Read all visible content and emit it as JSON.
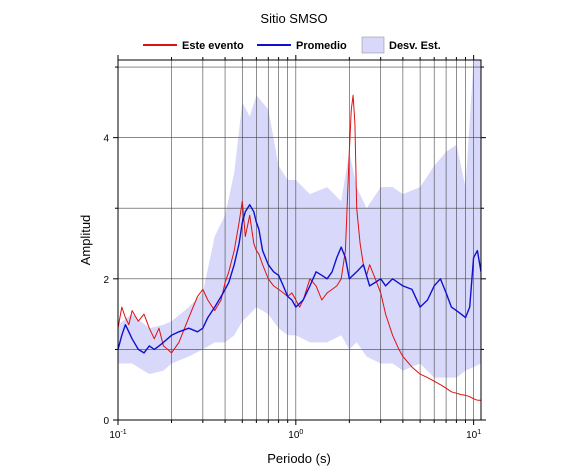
{
  "chart_data": {
    "type": "line",
    "title": "Sitio SMSO",
    "xlabel": "Periodo (s)",
    "ylabel": "Amplitud",
    "x_scale": "log",
    "xlim": [
      0.1,
      11
    ],
    "ylim": [
      0,
      5.1
    ],
    "grid": true,
    "legend_position": "top",
    "x_tick_labels": [
      {
        "base": "10",
        "exp": "-1",
        "value": 0.1
      },
      {
        "base": "10",
        "exp": "0",
        "value": 1
      },
      {
        "base": "10",
        "exp": "1",
        "value": 10
      }
    ],
    "y_ticks": [
      0,
      2,
      4
    ],
    "y_tick_labels": [
      "0",
      "2",
      "4"
    ],
    "legend": [
      {
        "label": "Este evento",
        "kind": "line",
        "color": "#e01010"
      },
      {
        "label": "Promedio",
        "kind": "line",
        "color": "#1010d0"
      },
      {
        "label": "Desv. Est.",
        "kind": "band",
        "color": "#d8d8fa"
      }
    ],
    "band": {
      "name": "Desv. Est.",
      "color": "#d8d8fa",
      "x": [
        0.1,
        0.12,
        0.15,
        0.18,
        0.2,
        0.25,
        0.3,
        0.35,
        0.4,
        0.45,
        0.5,
        0.55,
        0.6,
        0.7,
        0.8,
        0.9,
        1.0,
        1.2,
        1.5,
        1.8,
        2.0,
        2.2,
        2.5,
        3.0,
        3.5,
        4.0,
        5.0,
        6.0,
        7.0,
        8.0,
        9.0,
        10.0,
        11.0
      ],
      "upper": [
        1.35,
        1.5,
        1.3,
        1.35,
        1.4,
        1.6,
        1.8,
        2.6,
        2.9,
        3.5,
        4.5,
        4.3,
        4.6,
        4.4,
        3.6,
        3.4,
        3.4,
        3.2,
        3.3,
        3.1,
        3.8,
        3.3,
        3.0,
        3.3,
        3.3,
        3.2,
        3.3,
        3.6,
        3.8,
        3.9,
        3.3,
        5.1,
        5.1
      ],
      "lower": [
        0.8,
        0.8,
        0.65,
        0.7,
        0.8,
        0.9,
        1.0,
        1.1,
        1.1,
        1.2,
        1.4,
        1.5,
        1.6,
        1.5,
        1.3,
        1.2,
        1.2,
        1.1,
        1.1,
        1.2,
        1.0,
        1.1,
        0.9,
        0.8,
        0.8,
        0.7,
        0.8,
        0.6,
        0.6,
        0.6,
        0.7,
        0.75,
        0.8
      ]
    },
    "series": [
      {
        "name": "Este evento",
        "color": "#e01010",
        "x": [
          0.1,
          0.105,
          0.11,
          0.115,
          0.12,
          0.13,
          0.14,
          0.15,
          0.16,
          0.17,
          0.18,
          0.19,
          0.2,
          0.22,
          0.25,
          0.28,
          0.3,
          0.32,
          0.35,
          0.38,
          0.4,
          0.42,
          0.45,
          0.48,
          0.5,
          0.52,
          0.55,
          0.58,
          0.6,
          0.62,
          0.65,
          0.7,
          0.75,
          0.8,
          0.85,
          0.9,
          0.95,
          1.0,
          1.05,
          1.1,
          1.2,
          1.3,
          1.4,
          1.5,
          1.6,
          1.7,
          1.8,
          1.9,
          2.0,
          2.05,
          2.1,
          2.15,
          2.2,
          2.3,
          2.4,
          2.5,
          2.6,
          2.7,
          2.8,
          3.0,
          3.2,
          3.5,
          3.8,
          4.0,
          4.5,
          5.0,
          5.5,
          6.0,
          6.5,
          7.0,
          7.5,
          8.0,
          8.5,
          9.0,
          9.5,
          10.0,
          10.5,
          11.0
        ],
        "y": [
          1.3,
          1.6,
          1.45,
          1.35,
          1.55,
          1.4,
          1.5,
          1.3,
          1.15,
          1.3,
          1.05,
          1.0,
          0.95,
          1.1,
          1.45,
          1.75,
          1.85,
          1.7,
          1.55,
          1.7,
          1.95,
          2.1,
          2.4,
          2.8,
          3.1,
          2.6,
          2.9,
          2.5,
          2.4,
          2.35,
          2.2,
          2.0,
          1.9,
          1.85,
          1.8,
          1.75,
          1.8,
          1.7,
          1.6,
          1.7,
          2.0,
          1.9,
          1.7,
          1.8,
          1.85,
          1.9,
          2.0,
          2.4,
          3.8,
          4.4,
          4.6,
          4.2,
          3.0,
          2.5,
          2.2,
          2.05,
          2.2,
          2.1,
          2.0,
          1.8,
          1.5,
          1.2,
          1.0,
          0.9,
          0.75,
          0.65,
          0.6,
          0.55,
          0.5,
          0.45,
          0.4,
          0.38,
          0.36,
          0.35,
          0.33,
          0.3,
          0.28,
          0.28
        ]
      },
      {
        "name": "Promedio",
        "color": "#1010d0",
        "x": [
          0.1,
          0.105,
          0.11,
          0.115,
          0.12,
          0.13,
          0.14,
          0.15,
          0.16,
          0.17,
          0.18,
          0.2,
          0.22,
          0.25,
          0.28,
          0.3,
          0.32,
          0.35,
          0.38,
          0.4,
          0.42,
          0.45,
          0.48,
          0.5,
          0.52,
          0.55,
          0.58,
          0.6,
          0.62,
          0.65,
          0.7,
          0.75,
          0.8,
          0.85,
          0.9,
          0.95,
          1.0,
          1.1,
          1.2,
          1.3,
          1.4,
          1.5,
          1.6,
          1.7,
          1.8,
          1.9,
          2.0,
          2.2,
          2.4,
          2.6,
          2.8,
          3.0,
          3.2,
          3.5,
          4.0,
          4.5,
          5.0,
          5.5,
          6.0,
          6.5,
          7.0,
          7.5,
          8.0,
          8.5,
          9.0,
          9.5,
          10.0,
          10.5,
          11.0
        ],
        "y": [
          1.0,
          1.2,
          1.35,
          1.25,
          1.15,
          1.0,
          0.95,
          1.05,
          1.0,
          1.05,
          1.1,
          1.2,
          1.25,
          1.3,
          1.25,
          1.3,
          1.45,
          1.6,
          1.75,
          1.85,
          1.95,
          2.2,
          2.5,
          2.8,
          2.95,
          3.05,
          2.95,
          2.8,
          2.7,
          2.4,
          2.2,
          2.1,
          2.05,
          1.9,
          1.75,
          1.7,
          1.6,
          1.7,
          1.9,
          2.1,
          2.05,
          2.0,
          2.1,
          2.3,
          2.45,
          2.3,
          2.0,
          2.1,
          2.2,
          1.9,
          1.95,
          2.0,
          1.9,
          2.0,
          1.9,
          1.85,
          1.6,
          1.7,
          1.9,
          2.0,
          1.8,
          1.6,
          1.55,
          1.5,
          1.45,
          1.6,
          2.3,
          2.4,
          2.1
        ]
      }
    ]
  }
}
